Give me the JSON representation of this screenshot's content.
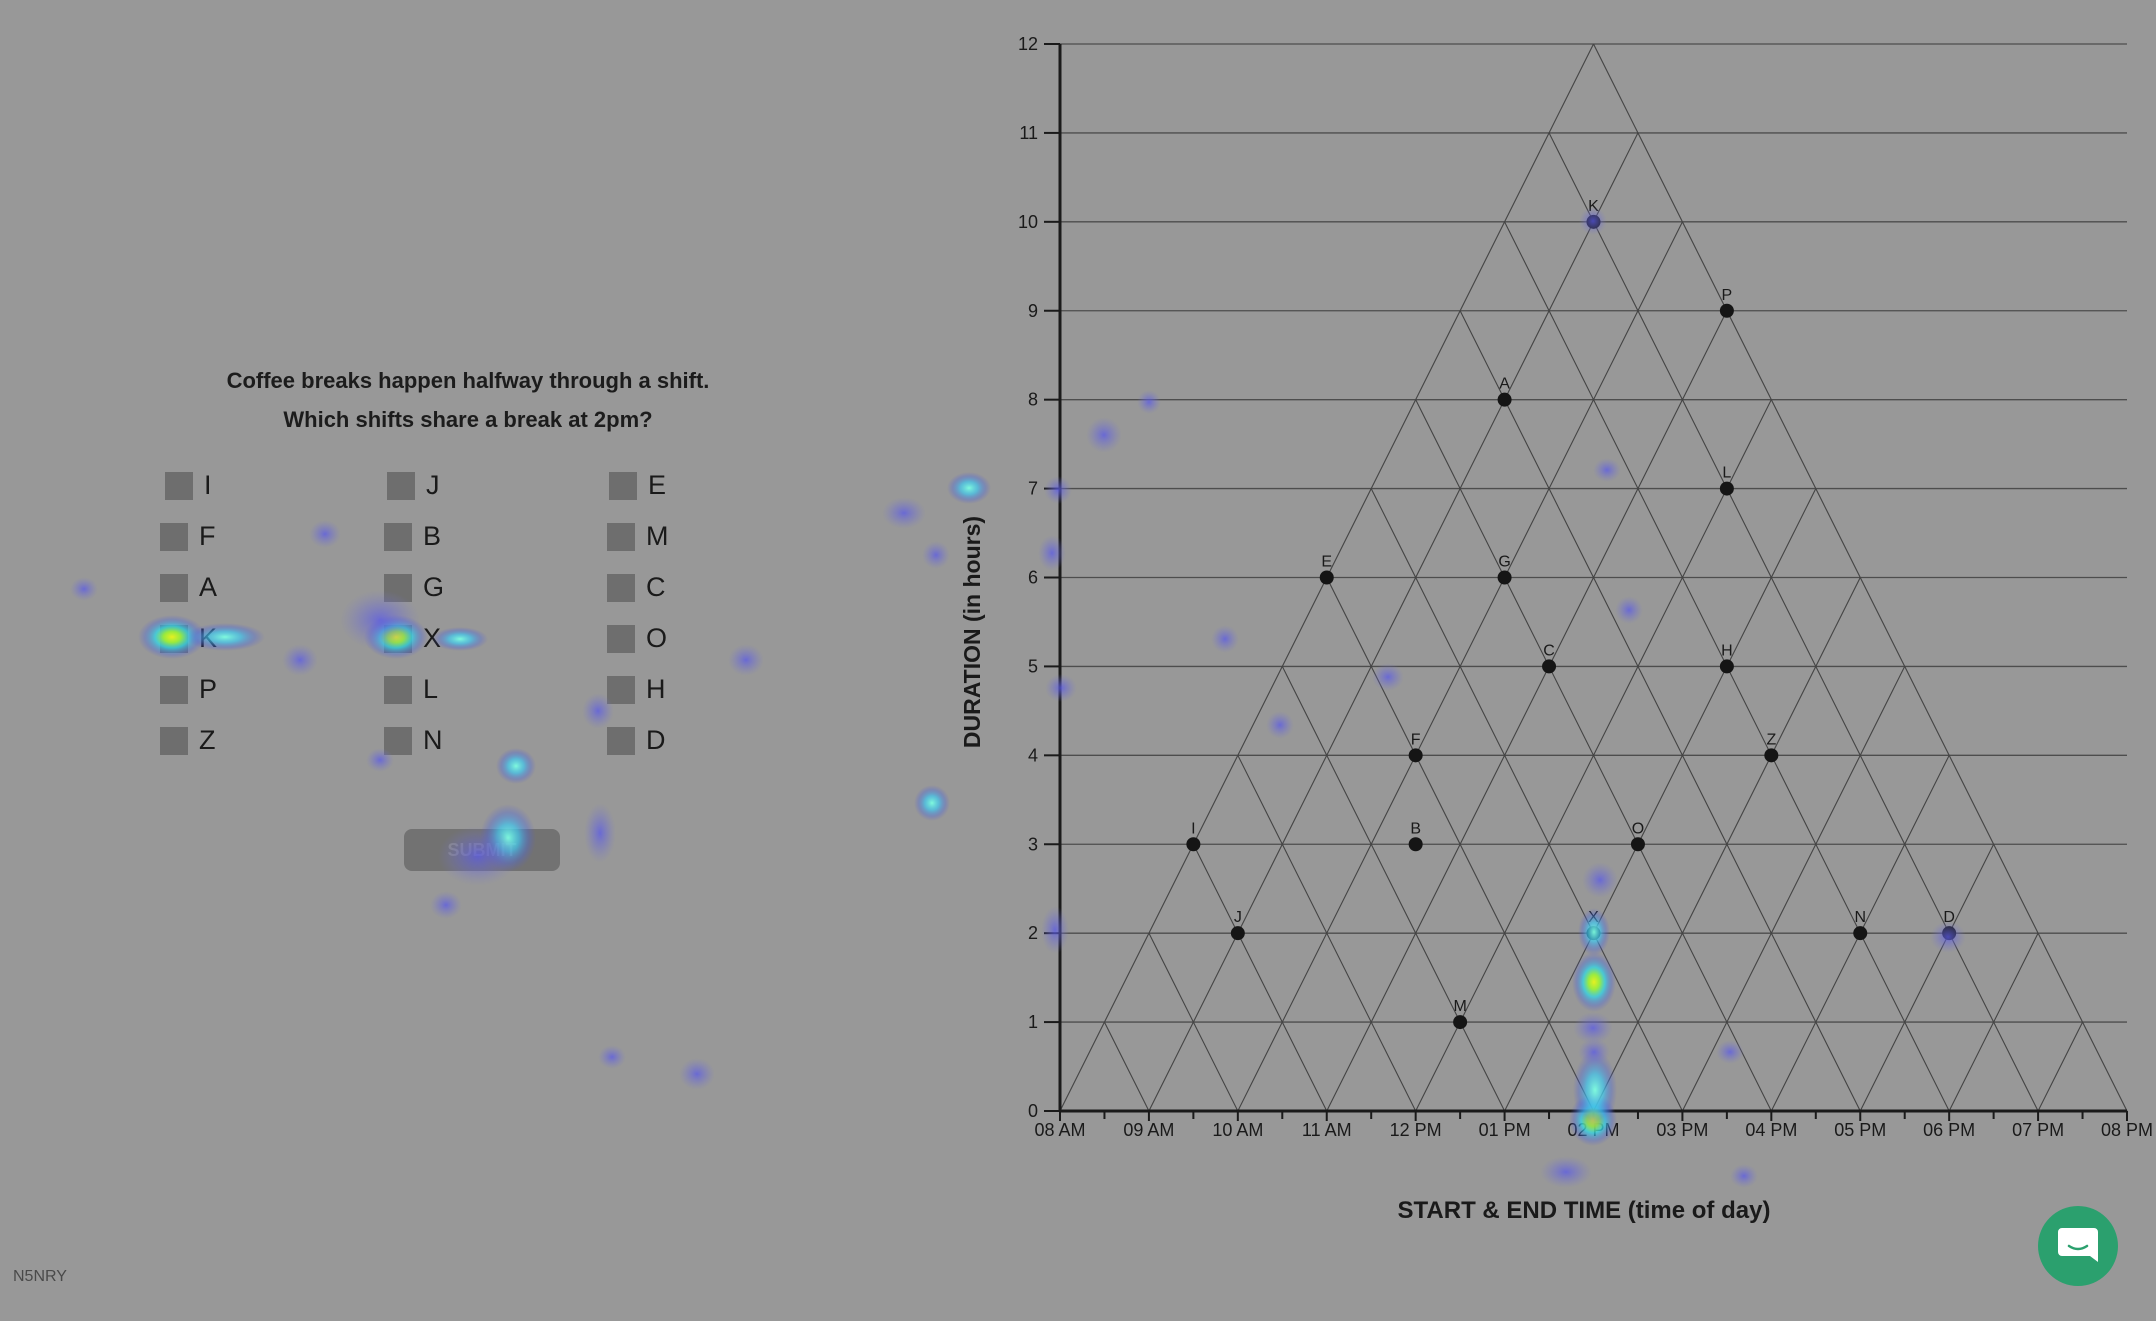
{
  "question": {
    "line1": "Coffee breaks happen halfway through a shift.",
    "line2": "Which shifts share a break at 2pm?"
  },
  "options": [
    {
      "label": "I"
    },
    {
      "label": "J"
    },
    {
      "label": "E"
    },
    {
      "label": "F"
    },
    {
      "label": "B"
    },
    {
      "label": "M"
    },
    {
      "label": "A"
    },
    {
      "label": "G"
    },
    {
      "label": "C"
    },
    {
      "label": "K"
    },
    {
      "label": "X"
    },
    {
      "label": "O"
    },
    {
      "label": "P"
    },
    {
      "label": "L"
    },
    {
      "label": "H"
    },
    {
      "label": "Z"
    },
    {
      "label": "N"
    },
    {
      "label": "D"
    }
  ],
  "submit_label": "SUBMIT",
  "session_code": "N5NRY",
  "chat_icon": "chat-bubble-icon",
  "chart_data": {
    "type": "scatter",
    "xlabel": "START & END TIME (time of day)",
    "ylabel": "DURATION (in hours)",
    "x_ticks": [
      "08 AM",
      "09 AM",
      "10 AM",
      "11 AM",
      "12 PM",
      "01 PM",
      "02 PM",
      "03 PM",
      "04 PM",
      "05 PM",
      "06 PM",
      "07 PM",
      "08 PM"
    ],
    "xlim": [
      8,
      20
    ],
    "ylim": [
      0,
      12
    ],
    "y_ticks": [
      "0",
      "1",
      "2",
      "3",
      "4",
      "5",
      "6",
      "7",
      "8",
      "9",
      "10",
      "11",
      "12"
    ],
    "grid": "triangular",
    "points": [
      {
        "label": "K",
        "x": 14,
        "y": 10
      },
      {
        "label": "P",
        "x": 15.5,
        "y": 9
      },
      {
        "label": "A",
        "x": 13,
        "y": 8
      },
      {
        "label": "L",
        "x": 15.5,
        "y": 7
      },
      {
        "label": "E",
        "x": 11,
        "y": 6
      },
      {
        "label": "G",
        "x": 13,
        "y": 6
      },
      {
        "label": "C",
        "x": 13.5,
        "y": 5
      },
      {
        "label": "H",
        "x": 15.5,
        "y": 5
      },
      {
        "label": "F",
        "x": 12,
        "y": 4
      },
      {
        "label": "Z",
        "x": 16,
        "y": 4
      },
      {
        "label": "I",
        "x": 9.5,
        "y": 3
      },
      {
        "label": "B",
        "x": 12,
        "y": 3
      },
      {
        "label": "O",
        "x": 14.5,
        "y": 3
      },
      {
        "label": "J",
        "x": 10,
        "y": 2
      },
      {
        "label": "X",
        "x": 14,
        "y": 2
      },
      {
        "label": "N",
        "x": 17,
        "y": 2
      },
      {
        "label": "D",
        "x": 18,
        "y": 2
      },
      {
        "label": "M",
        "x": 12.5,
        "y": 1
      }
    ]
  },
  "gaze_heatmap": {
    "hotspots": [
      {
        "region": "option-K",
        "intensity": "high"
      },
      {
        "region": "option-X",
        "intensity": "high"
      },
      {
        "region": "point-X",
        "intensity": "high"
      },
      {
        "region": "x-axis-02 PM",
        "intensity": "high"
      },
      {
        "region": "submit-button",
        "intensity": "medium"
      }
    ]
  }
}
